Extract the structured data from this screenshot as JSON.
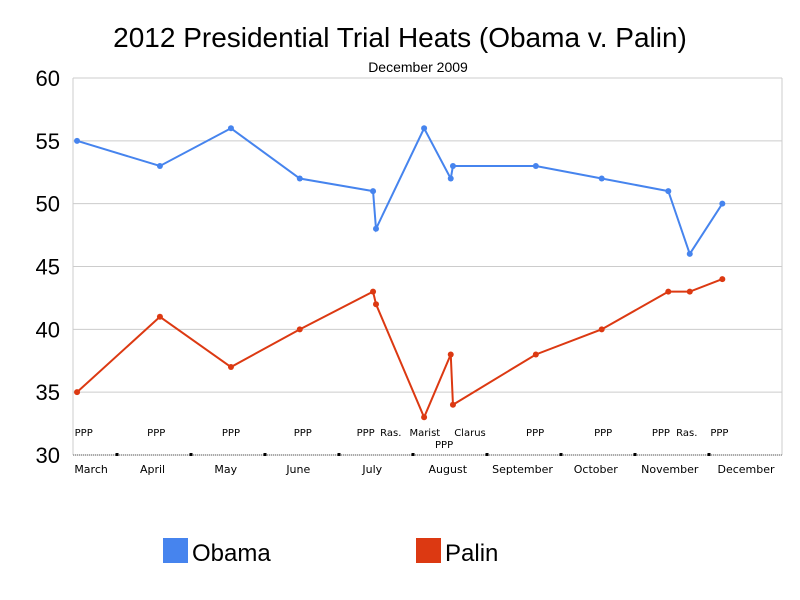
{
  "chart_data": {
    "type": "line",
    "title": "2012 Presidential Trial Heats (Obama v. Palin)",
    "subtitle": "December 2009",
    "xlabel": "",
    "ylabel": "",
    "ylim": [
      30,
      60
    ],
    "yticks": [
      30,
      35,
      40,
      45,
      50,
      55,
      60
    ],
    "grid": true,
    "x_unit": "month (fractional, 2009)",
    "xlim": [
      3.0,
      12.9
    ],
    "month_ticks": [
      4,
      5,
      6,
      7,
      8,
      9,
      10,
      11,
      12
    ],
    "month_labels": [
      {
        "label": "March",
        "x": 3.65
      },
      {
        "label": "April",
        "x": 4.48
      },
      {
        "label": "May",
        "x": 5.47
      },
      {
        "label": "June",
        "x": 6.45
      },
      {
        "label": "July",
        "x": 7.45
      },
      {
        "label": "August",
        "x": 8.47
      },
      {
        "label": "September",
        "x": 9.48
      },
      {
        "label": "October",
        "x": 10.47
      },
      {
        "label": "November",
        "x": 11.47
      },
      {
        "label": "December",
        "x": 12.5
      }
    ],
    "poll_labels": [
      {
        "label": "PPP",
        "x": 3.55,
        "row": 0
      },
      {
        "label": "PPP",
        "x": 4.53,
        "row": 0
      },
      {
        "label": "PPP",
        "x": 5.54,
        "row": 0
      },
      {
        "label": "PPP",
        "x": 6.51,
        "row": 0
      },
      {
        "label": "PPP",
        "x": 7.36,
        "row": 0
      },
      {
        "label": "Ras.",
        "x": 7.7,
        "row": 0
      },
      {
        "label": "Marist",
        "x": 8.16,
        "row": 0
      },
      {
        "label": "PPP",
        "x": 8.42,
        "row": 1
      },
      {
        "label": "Clarus",
        "x": 8.77,
        "row": 0
      },
      {
        "label": "PPP",
        "x": 9.65,
        "row": 0
      },
      {
        "label": "PPP",
        "x": 10.57,
        "row": 0
      },
      {
        "label": "PPP",
        "x": 11.35,
        "row": 0
      },
      {
        "label": "Ras.",
        "x": 11.7,
        "row": 0
      },
      {
        "label": "PPP",
        "x": 12.14,
        "row": 0
      }
    ],
    "x": [
      3.46,
      4.58,
      5.54,
      6.47,
      7.46,
      7.5,
      8.15,
      8.51,
      8.54,
      9.66,
      10.55,
      11.45,
      11.74,
      12.18
    ],
    "series": [
      {
        "name": "Obama",
        "color": "#4684ee",
        "values": [
          55,
          53,
          56,
          52,
          51,
          48,
          56,
          52,
          53,
          53,
          52,
          51,
          46,
          50
        ]
      },
      {
        "name": "Palin",
        "color": "#dc3912",
        "values": [
          35,
          41,
          37,
          40,
          43,
          42,
          33,
          38,
          34,
          38,
          40,
          43,
          43,
          44
        ]
      }
    ],
    "legend_position": "bottom"
  }
}
